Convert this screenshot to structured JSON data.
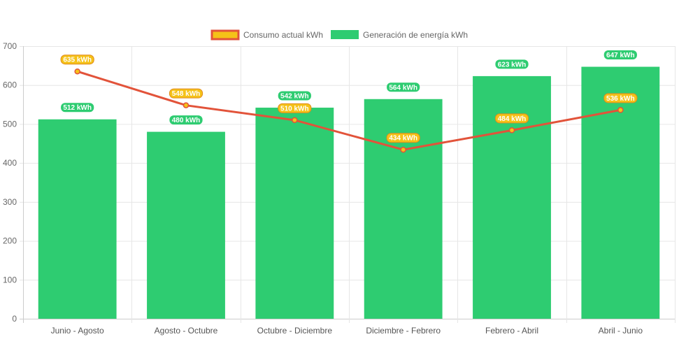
{
  "chart_data": {
    "type": "bar",
    "categories": [
      "Junio - Agosto",
      "Agosto - Octubre",
      "Octubre - Diciembre",
      "Diciembre - Febrero",
      "Febrero - Abril",
      "Abril - Junio"
    ],
    "y_ticks": [
      "0",
      "100",
      "200",
      "300",
      "400",
      "500",
      "600",
      "700"
    ],
    "ylim": [
      0,
      700
    ],
    "grid": true,
    "legend_position": "top-center",
    "series": [
      {
        "name": "Consumo actual kWh",
        "render": "line",
        "values": [
          635,
          548,
          510,
          434,
          484,
          536
        ],
        "labels": [
          "635 kWh",
          "548 kWh",
          "510 kWh",
          "434 kWh",
          "484 kWh",
          "536 kWh"
        ],
        "line_color": "#e2533a",
        "fill_color": "#f5c218"
      },
      {
        "name": "Generación de energía kWh",
        "render": "bar",
        "values": [
          512,
          480,
          542,
          564,
          623,
          647
        ],
        "labels": [
          "512 kWh",
          "480 kWh",
          "542 kWh",
          "564 kWh",
          "623 kWh",
          "647 kWh"
        ],
        "color": "#2ecc71"
      }
    ]
  }
}
